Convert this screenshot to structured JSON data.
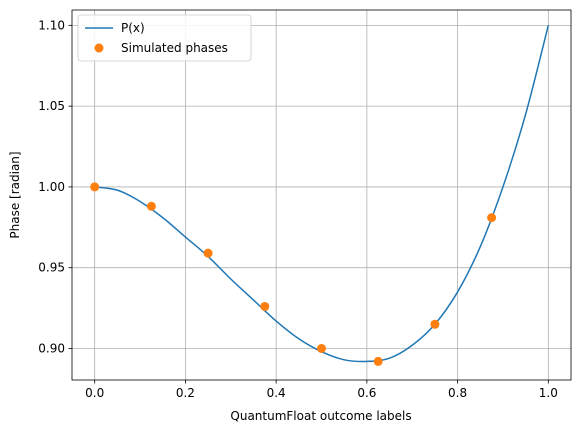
{
  "chart_data": {
    "type": "line",
    "title": "",
    "xlabel": "QuantumFloat outcome labels",
    "ylabel": "Phase [radian]",
    "xlim": [
      -0.05,
      1.05
    ],
    "ylim": [
      0.8805,
      1.1095
    ],
    "grid": true,
    "legend_position": "top-left",
    "x_ticks": [
      0.0,
      0.2,
      0.4,
      0.6,
      0.8,
      1.0
    ],
    "x_tick_labels": [
      "0.0",
      "0.2",
      "0.4",
      "0.6",
      "0.8",
      "1.0"
    ],
    "y_ticks": [
      0.9,
      0.95,
      1.0,
      1.05,
      1.1
    ],
    "y_tick_labels": [
      "0.90",
      "0.95",
      "1.00",
      "1.05",
      "1.10"
    ],
    "series": [
      {
        "name": "P(x)",
        "kind": "line",
        "color": "#1f77b4",
        "x": [
          0.0,
          0.05,
          0.1,
          0.15,
          0.2,
          0.25,
          0.3,
          0.35,
          0.4,
          0.45,
          0.5,
          0.55,
          0.6,
          0.65,
          0.7,
          0.75,
          0.8,
          0.85,
          0.9,
          0.95,
          1.0
        ],
        "y": [
          1.0,
          0.998,
          0.991,
          0.981,
          0.969,
          0.957,
          0.943,
          0.93,
          0.917,
          0.906,
          0.898,
          0.893,
          0.892,
          0.894,
          0.902,
          0.915,
          0.935,
          0.963,
          1.0,
          1.045,
          1.1
        ]
      },
      {
        "name": "Simulated phases",
        "kind": "scatter",
        "color": "#ff7f0e",
        "x": [
          0.0,
          0.125,
          0.25,
          0.375,
          0.5,
          0.625,
          0.75,
          0.875
        ],
        "y": [
          1.0,
          0.988,
          0.959,
          0.926,
          0.9,
          0.892,
          0.915,
          0.981
        ]
      }
    ]
  }
}
